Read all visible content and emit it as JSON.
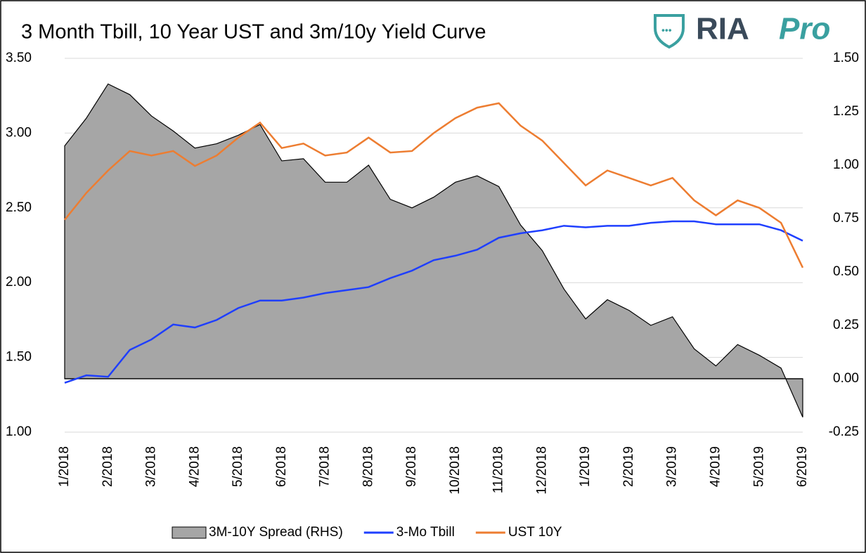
{
  "chart_data": {
    "type": "line",
    "title": "3 Month Tbill, 10 Year UST and 3m/10y Yield Curve",
    "logo": {
      "main": "RIA",
      "accent": "Pro"
    },
    "categories": [
      "1/2018",
      null,
      "2/2018",
      null,
      "3/2018",
      null,
      "4/2018",
      null,
      "5/2018",
      null,
      "6/2018",
      null,
      "7/2018",
      null,
      "8/2018",
      null,
      "9/2018",
      null,
      "10/2018",
      null,
      "11/2018",
      null,
      "12/2018",
      null,
      "1/2019",
      null,
      "2/2019",
      null,
      "3/2019",
      null,
      "4/2019",
      null,
      "5/2019",
      null,
      "6/2019"
    ],
    "series": [
      {
        "name": "3M-10Y Spread (RHS)",
        "type": "area",
        "axis": "y2",
        "color": "#a6a6a6",
        "values": [
          1.09,
          1.22,
          1.38,
          1.33,
          1.23,
          1.16,
          1.08,
          1.1,
          1.14,
          1.19,
          1.02,
          1.03,
          0.92,
          0.92,
          1.0,
          0.84,
          0.8,
          0.85,
          0.92,
          0.95,
          0.9,
          0.72,
          0.6,
          0.42,
          0.28,
          0.37,
          0.32,
          0.25,
          0.29,
          0.14,
          0.06,
          0.16,
          0.11,
          0.05,
          -0.18
        ]
      },
      {
        "name": "3-Mo Tbill",
        "type": "line",
        "color": "#1f3fff",
        "values": [
          1.33,
          1.38,
          1.37,
          1.55,
          1.62,
          1.72,
          1.7,
          1.75,
          1.83,
          1.88,
          1.88,
          1.9,
          1.93,
          1.95,
          1.97,
          2.03,
          2.08,
          2.15,
          2.18,
          2.22,
          2.3,
          2.33,
          2.35,
          2.38,
          2.37,
          2.38,
          2.38,
          2.4,
          2.41,
          2.41,
          2.39,
          2.39,
          2.39,
          2.35,
          2.28
        ]
      },
      {
        "name": "UST 10Y",
        "type": "line",
        "color": "#ed7d31",
        "values": [
          2.42,
          2.6,
          2.75,
          2.88,
          2.85,
          2.88,
          2.78,
          2.85,
          2.97,
          3.07,
          2.9,
          2.93,
          2.85,
          2.87,
          2.97,
          2.87,
          2.88,
          3.0,
          3.1,
          3.17,
          3.2,
          3.05,
          2.95,
          2.8,
          2.65,
          2.75,
          2.7,
          2.65,
          2.7,
          2.55,
          2.45,
          2.55,
          2.5,
          2.4,
          2.1
        ]
      }
    ],
    "ylim": [
      1.0,
      3.5
    ],
    "yticks": [
      {
        "value": 1.0,
        "label": "1.00"
      },
      {
        "value": 1.5,
        "label": "1.50"
      },
      {
        "value": 2.0,
        "label": "2.00"
      },
      {
        "value": 2.5,
        "label": "2.50"
      },
      {
        "value": 3.0,
        "label": "3.00"
      },
      {
        "value": 3.5,
        "label": "3.50"
      }
    ],
    "y2lim": [
      -0.25,
      1.5
    ],
    "y2ticks": [
      {
        "value": -0.25,
        "label": "-0.25"
      },
      {
        "value": 0,
        "label": "0.00"
      },
      {
        "value": 0.25,
        "label": "0.25"
      },
      {
        "value": 0.5,
        "label": "0.50"
      },
      {
        "value": 0.75,
        "label": "0.75"
      },
      {
        "value": 1.0,
        "label": "1.00"
      },
      {
        "value": 1.25,
        "label": "1.25"
      },
      {
        "value": 1.5,
        "label": "1.50"
      }
    ],
    "grid": true,
    "legend": "bottom"
  }
}
